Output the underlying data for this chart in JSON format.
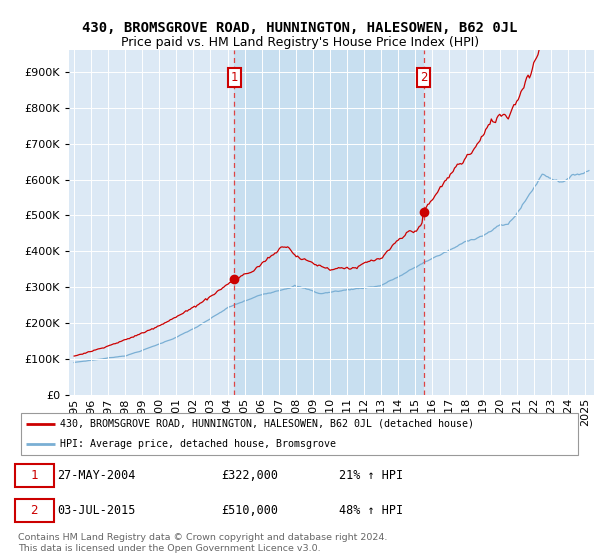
{
  "title": "430, BROMSGROVE ROAD, HUNNINGTON, HALESOWEN, B62 0JL",
  "subtitle": "Price paid vs. HM Land Registry's House Price Index (HPI)",
  "ytick_values": [
    0,
    100000,
    200000,
    300000,
    400000,
    500000,
    600000,
    700000,
    800000,
    900000
  ],
  "ylim": [
    0,
    960000
  ],
  "xlim_start": 1994.7,
  "xlim_end": 2025.5,
  "background_color": "#dce9f5",
  "shade_color": "#c8dff0",
  "red_line_color": "#cc0000",
  "blue_line_color": "#7aafd4",
  "vline_color": "#dd4444",
  "marker1_x": 2004.4,
  "marker1_y": 322000,
  "marker2_x": 2015.5,
  "marker2_y": 510000,
  "annotation1_label": "1",
  "annotation2_label": "2",
  "legend_red_label": "430, BROMSGROVE ROAD, HUNNINGTON, HALESOWEN, B62 0JL (detached house)",
  "legend_blue_label": "HPI: Average price, detached house, Bromsgrove",
  "table_row1": [
    "1",
    "27-MAY-2004",
    "£322,000",
    "21% ↑ HPI"
  ],
  "table_row2": [
    "2",
    "03-JUL-2015",
    "£510,000",
    "48% ↑ HPI"
  ],
  "footer_text": "Contains HM Land Registry data © Crown copyright and database right 2024.\nThis data is licensed under the Open Government Licence v3.0.",
  "title_fontsize": 10,
  "subtitle_fontsize": 9,
  "tick_fontsize": 8
}
